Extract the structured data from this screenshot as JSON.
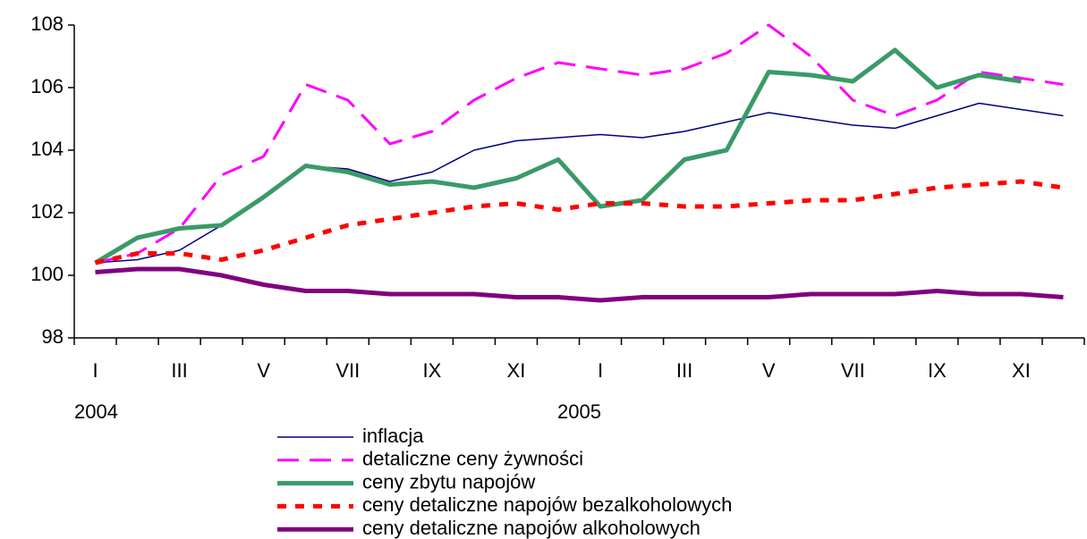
{
  "chart_data": {
    "type": "line",
    "categories": [
      "I",
      null,
      "III",
      null,
      "V",
      null,
      "VII",
      null,
      "IX",
      null,
      "XI",
      null,
      "I",
      null,
      "III",
      null,
      "V",
      null,
      "VII",
      null,
      "IX",
      null,
      "XI",
      null
    ],
    "year_labels": [
      "2004",
      "2005"
    ],
    "ylim": [
      98,
      108
    ],
    "yticks": [
      98,
      100,
      102,
      104,
      106,
      108
    ],
    "series": [
      {
        "name": "inflacja",
        "color": "#000080",
        "width": 1.5,
        "dash": "solid",
        "values": [
          100.4,
          100.5,
          100.8,
          101.6,
          102.5,
          103.5,
          103.4,
          103.0,
          103.3,
          104.0,
          104.3,
          104.4,
          104.5,
          104.4,
          104.6,
          104.9,
          105.2,
          105.0,
          104.8,
          104.7,
          105.1,
          105.5,
          105.3,
          105.1
        ]
      },
      {
        "name": "detaliczne ceny żywności",
        "color": "#ff00ff",
        "width": 3,
        "dash": "dashed",
        "values": [
          100.4,
          100.7,
          101.5,
          103.2,
          103.8,
          106.1,
          105.6,
          104.2,
          104.6,
          105.6,
          106.3,
          106.8,
          106.6,
          106.4,
          106.6,
          107.1,
          108.0,
          107.0,
          105.6,
          105.1,
          105.6,
          106.5,
          106.3,
          106.1
        ]
      },
      {
        "name": "ceny zbytu napojów",
        "color": "#3a9a68",
        "width": 5,
        "dash": "solid",
        "values": [
          100.4,
          101.2,
          101.5,
          101.6,
          102.5,
          103.5,
          103.3,
          102.9,
          103.0,
          102.8,
          103.1,
          103.7,
          102.2,
          102.4,
          103.7,
          104.0,
          106.5,
          106.4,
          106.2,
          107.2,
          106.0,
          106.4,
          106.2,
          null
        ]
      },
      {
        "name": "ceny detaliczne napojów bezalkoholowych",
        "color": "#ff0000",
        "width": 5,
        "dash": "dotted",
        "values": [
          100.4,
          100.7,
          100.7,
          100.5,
          100.8,
          101.2,
          101.6,
          101.8,
          102.0,
          102.2,
          102.3,
          102.1,
          102.3,
          102.3,
          102.2,
          102.2,
          102.3,
          102.4,
          102.4,
          102.6,
          102.8,
          102.9,
          103.0,
          102.8
        ]
      },
      {
        "name": "ceny detaliczne napojów alkoholowych",
        "color": "#800080",
        "width": 5,
        "dash": "solid",
        "values": [
          100.1,
          100.2,
          100.2,
          100.0,
          99.7,
          99.5,
          99.5,
          99.4,
          99.4,
          99.4,
          99.3,
          99.3,
          99.2,
          99.3,
          99.3,
          99.3,
          99.3,
          99.4,
          99.4,
          99.4,
          99.5,
          99.4,
          99.4,
          99.3
        ]
      }
    ]
  }
}
